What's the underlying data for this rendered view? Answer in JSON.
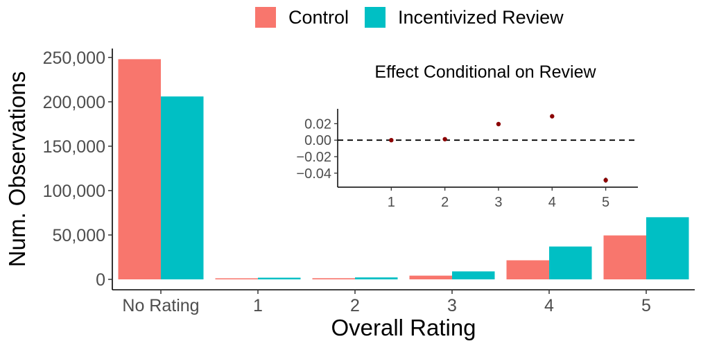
{
  "chart_data": [
    {
      "type": "bar",
      "xlabel": "Overall Rating",
      "ylabel": "Num. Observations",
      "categories": [
        "No Rating",
        "1",
        "2",
        "3",
        "4",
        "5"
      ],
      "ylim": [
        0,
        260000
      ],
      "yticks": [
        0,
        50000,
        100000,
        150000,
        200000,
        250000
      ],
      "ytick_labels": [
        "0",
        "50,000",
        "100,000",
        "150,000",
        "200,000",
        "250,000"
      ],
      "legend_position": "top",
      "series": [
        {
          "name": "Control",
          "color": "#F8766D",
          "values": [
            248000,
            1200,
            1300,
            4200,
            21500,
            49500
          ]
        },
        {
          "name": "Incentivized Review",
          "color": "#00BFC4",
          "values": [
            206000,
            1900,
            2200,
            9000,
            37000,
            70000
          ]
        }
      ]
    },
    {
      "type": "scatter",
      "title": "Effect Conditional on Review",
      "xlabel": "",
      "ylabel": "",
      "x": [
        1,
        2,
        3,
        4,
        5
      ],
      "y": [
        0.0,
        0.0012,
        0.0195,
        0.029,
        -0.0485
      ],
      "error": [
        0.0012,
        0.0014,
        0.0018,
        0.0025,
        0.003
      ],
      "xlim": [
        0.0,
        5.6
      ],
      "ylim": [
        -0.057,
        0.038
      ],
      "yticks": [
        -0.04,
        -0.02,
        0.0,
        0.02
      ],
      "ytick_labels": [
        "−0.04",
        "−0.02",
        "0.00",
        "0.02"
      ],
      "xticks": [
        1,
        2,
        3,
        4,
        5
      ],
      "xtick_labels": [
        "1",
        "2",
        "3",
        "4",
        "5"
      ],
      "reference_line": 0,
      "point_color": "#8B0000"
    }
  ]
}
